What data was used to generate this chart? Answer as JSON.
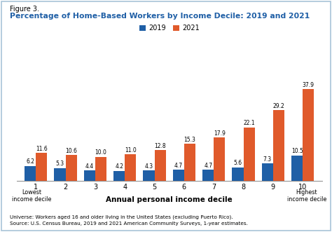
{
  "figure_label": "Figure 3.",
  "title": "Percentage of Home-Based Workers by Income Decile: 2019 and 2021",
  "categories": [
    "1",
    "2",
    "3",
    "4",
    "5",
    "6",
    "7",
    "8",
    "9",
    "10"
  ],
  "values_2019": [
    6.2,
    5.3,
    4.4,
    4.2,
    4.3,
    4.7,
    4.7,
    5.6,
    7.3,
    10.5
  ],
  "values_2021": [
    11.6,
    10.6,
    10.0,
    11.0,
    12.8,
    15.3,
    17.9,
    22.1,
    29.2,
    37.9
  ],
  "color_2019": "#1f5fa6",
  "color_2021": "#e05a2b",
  "title_color": "#1f5fa6",
  "xlabel": "Annual personal income decile",
  "ylim": [
    0,
    44
  ],
  "legend_labels": [
    "2019",
    "2021"
  ],
  "x_label_low": "Lowest\nincome decile",
  "x_label_high": "Highest\nincome decile",
  "footnote1": "Universe: Workers aged 16 and older living in the United States (excluding Puerto Rico).",
  "footnote2": "Source: U.S. Census Bureau, 2019 and 2021 American Community Surveys, 1-year estimates.",
  "background_color": "#ffffff",
  "border_color": "#a8c4d8"
}
